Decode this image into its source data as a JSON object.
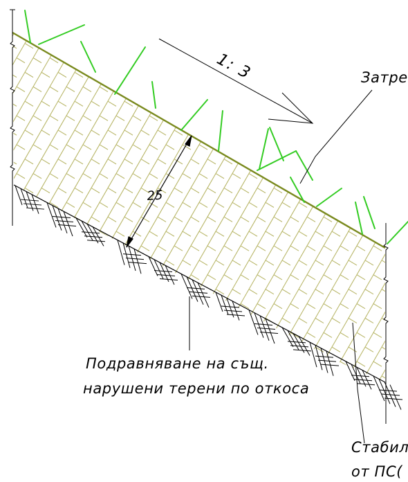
{
  "colors": {
    "soil_line": "#7a8a1e",
    "hatch": "#b9b76a",
    "grass": "#33cc22",
    "ink": "#000000",
    "background": "#ffffff"
  },
  "labels": {
    "slope_ratio": "1: 3",
    "thickness": "25",
    "leveling_line1": "Подравняване на същ.",
    "leveling_line2": "нарушени терени по откоса",
    "top_right_label": "Затре",
    "bottom_right_line1": "Стабил",
    "bottom_right_line2": "от ПС("
  },
  "icons": {
    "slope_arrow": "long-arrow-down-right",
    "dimension_arrows": "double-arrow",
    "ground_hatching": "earth-hatch",
    "vegetation": "grass-strokes"
  }
}
